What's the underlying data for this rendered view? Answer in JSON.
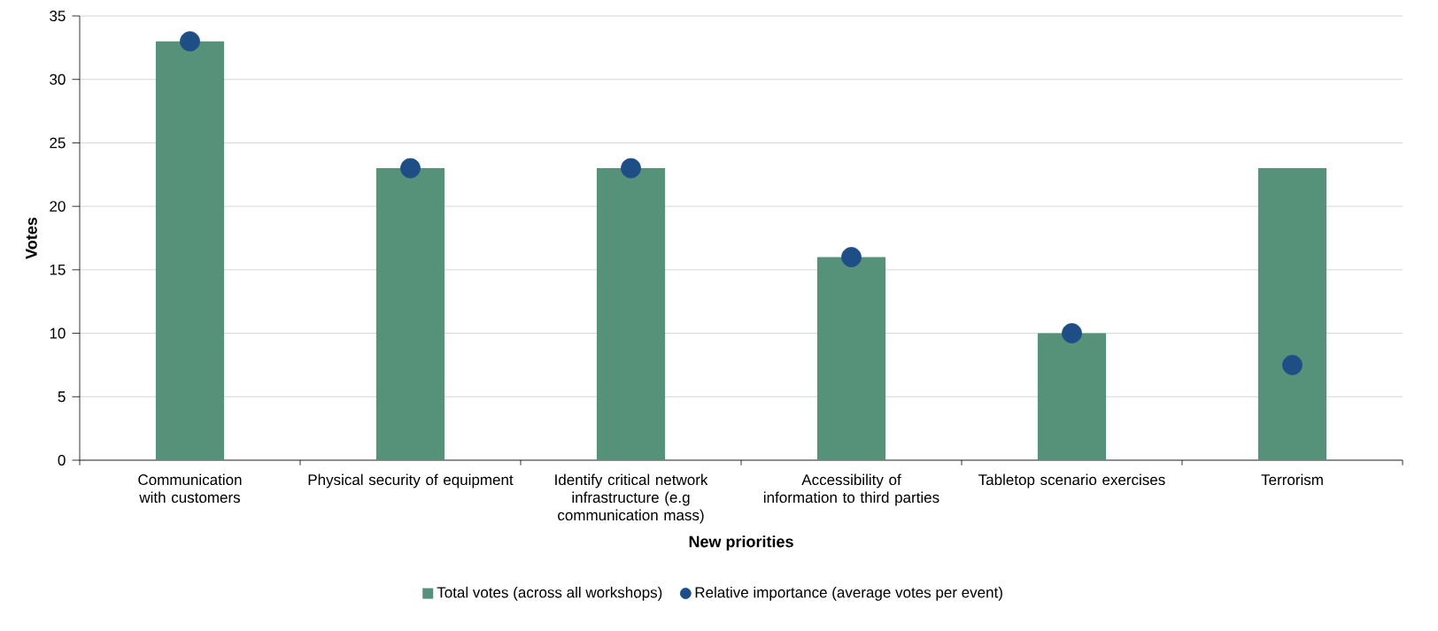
{
  "chart_data": {
    "type": "bar",
    "xlabel": "New priorities",
    "ylabel": "Votes",
    "categories": [
      "Communication with customers",
      "Physical security of equipment",
      "Identify critical network infrastructure (e.g communication mass)",
      "Accessibility of information to third parties",
      "Tabletop scenario exercises",
      "Terrorism"
    ],
    "series": [
      {
        "name": "Total votes (across all workshops)",
        "color": "#559279",
        "values": [
          33,
          23,
          23,
          16,
          10,
          23
        ]
      },
      {
        "name": "Relative importance (average votes per event)",
        "type": "scatter",
        "color": "#1f4e87",
        "marker": "circle",
        "x": [
          "Communication with customers",
          "Physical security of equipment",
          "Identify critical network infrastructure (e.g communication mass)",
          "Accessibility of information to third parties",
          "Tabletop scenario exercises",
          "Terrorism"
        ],
        "values": [
          33,
          23,
          23,
          16,
          10,
          7.5
        ]
      }
    ],
    "ylim": [
      0,
      35
    ],
    "yticks": [
      0,
      5,
      10,
      15,
      20,
      25,
      30,
      35
    ],
    "grid": "y",
    "legend": "bottom"
  }
}
